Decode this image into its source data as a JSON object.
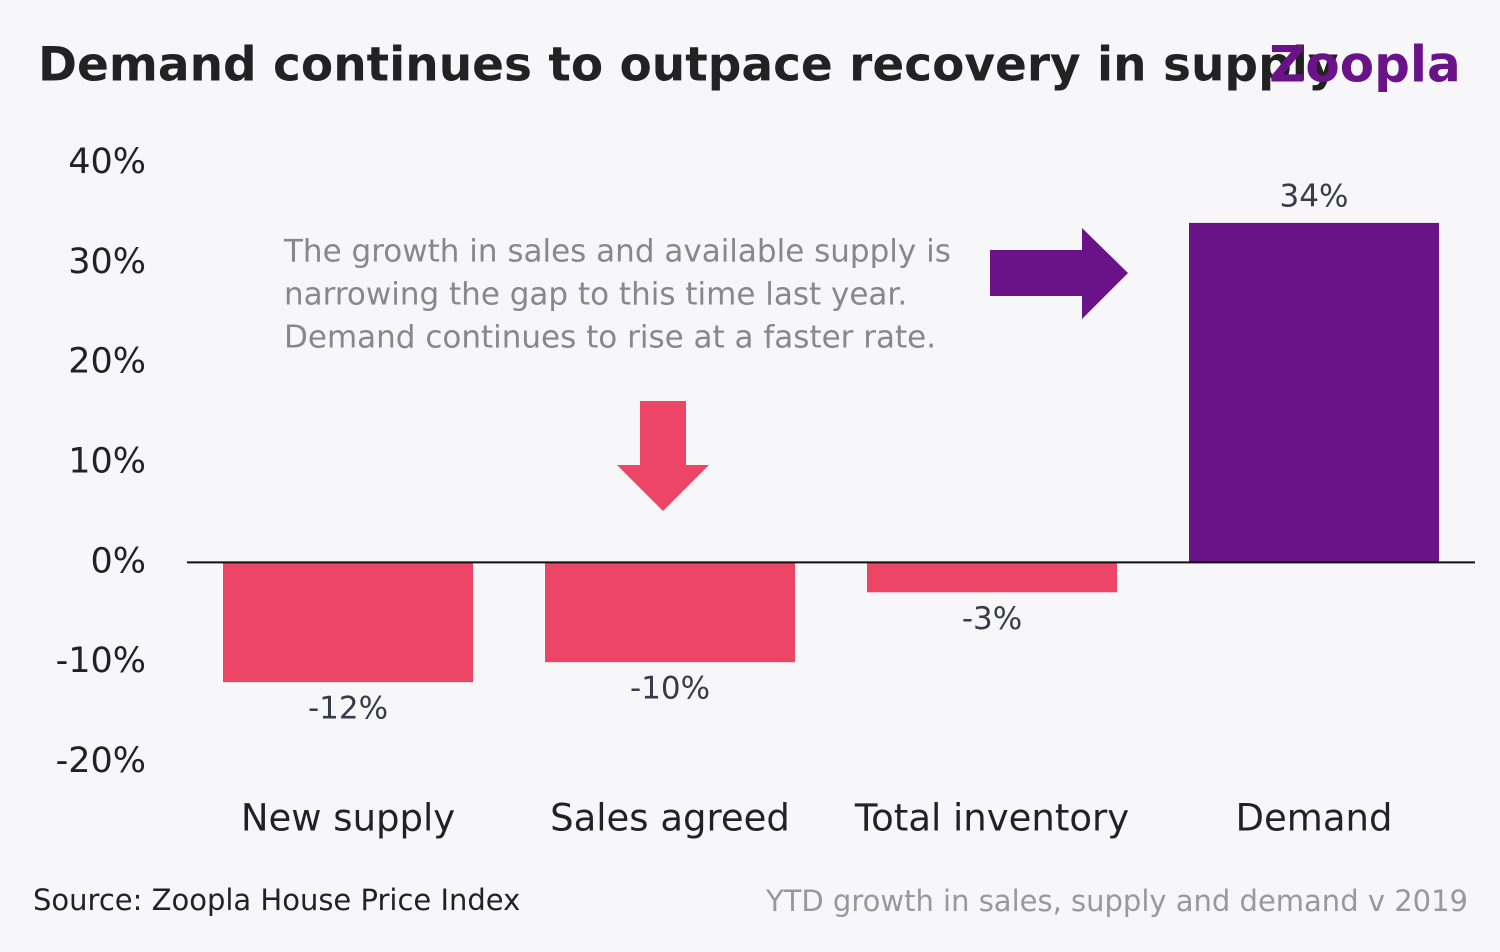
{
  "chart_data": {
    "type": "bar",
    "title": "Demand continues to outpace recovery in supply",
    "logo": "Zoopla",
    "annotation": [
      "The growth in sales and available supply is",
      "narrowing the gap to this time last year.",
      "Demand continues to rise at a faster rate."
    ],
    "source": "Source: Zoopla House Price Index",
    "note": "YTD growth in sales, supply and demand v 2019",
    "categories": [
      "New supply",
      "Sales agreed",
      "Total inventory",
      "Demand"
    ],
    "values": [
      -12,
      -10,
      -3,
      34
    ],
    "value_labels": [
      "-12%",
      "-10%",
      "-3%",
      "34%"
    ],
    "colors": [
      "#ec4565",
      "#ec4565",
      "#ec4565",
      "#6a1389"
    ],
    "ylim": [
      -20,
      40
    ],
    "yticks": [
      {
        "value": -20,
        "label": "-20%"
      },
      {
        "value": -10,
        "label": "-10%"
      },
      {
        "value": 0,
        "label": "0%"
      },
      {
        "value": 10,
        "label": "10%"
      },
      {
        "value": 20,
        "label": "20%"
      },
      {
        "value": 30,
        "label": "30%"
      },
      {
        "value": 40,
        "label": "40%"
      }
    ],
    "grid": false
  }
}
